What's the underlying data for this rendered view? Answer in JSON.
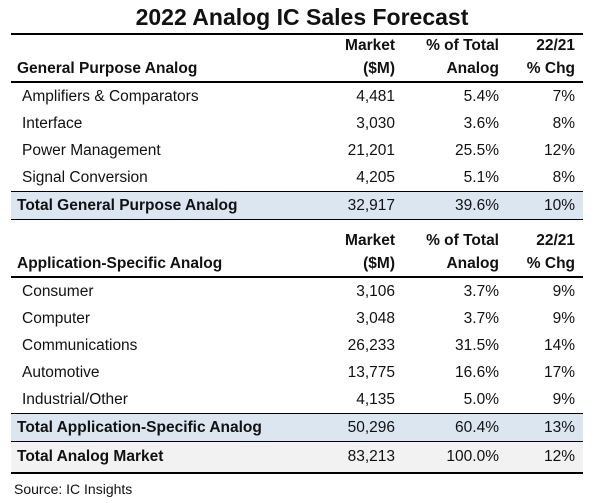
{
  "title": "2022 Analog IC Sales Forecast",
  "source": "Source:  IC Insights",
  "chart_data": {
    "type": "table",
    "title": "2022 Analog IC Sales Forecast",
    "columns": [
      "Market ($M)",
      "% of Total Analog",
      "22/21 % Chg"
    ],
    "sections": [
      {
        "name": "General Purpose Analog",
        "header": [
          "Market",
          "($M)",
          "% of Total",
          "Analog",
          "22/21",
          "% Chg"
        ],
        "rows": [
          {
            "label": "Amplifiers & Comparators",
            "market": "4,481",
            "share": "5.4%",
            "chg": "7%"
          },
          {
            "label": "Interface",
            "market": "3,030",
            "share": "3.6%",
            "chg": "8%"
          },
          {
            "label": "Power Management",
            "market": "21,201",
            "share": "25.5%",
            "chg": "12%"
          },
          {
            "label": "Signal Conversion",
            "market": "4,205",
            "share": "5.1%",
            "chg": "8%"
          }
        ],
        "total": {
          "label": "Total General Purpose Analog",
          "market": "32,917",
          "share": "39.6%",
          "chg": "10%"
        }
      },
      {
        "name": "Application-Specific Analog",
        "header": [
          "Market",
          "($M)",
          "% of Total",
          "Analog",
          "22/21",
          "% Chg"
        ],
        "rows": [
          {
            "label": "Consumer",
            "market": "3,106",
            "share": "3.7%",
            "chg": "9%"
          },
          {
            "label": "Computer",
            "market": "3,048",
            "share": "3.7%",
            "chg": "9%"
          },
          {
            "label": "Communications",
            "market": "26,233",
            "share": "31.5%",
            "chg": "14%"
          },
          {
            "label": "Automotive",
            "market": "13,775",
            "share": "16.6%",
            "chg": "17%"
          },
          {
            "label": "Industrial/Other",
            "market": "4,135",
            "share": "5.0%",
            "chg": "9%"
          }
        ],
        "total": {
          "label": "Total Application-Specific Analog",
          "market": "50,296",
          "share": "60.4%",
          "chg": "13%"
        }
      }
    ],
    "grand_total": {
      "label": "Total Analog Market",
      "market": "83,213",
      "share": "100.0%",
      "chg": "12%"
    }
  }
}
